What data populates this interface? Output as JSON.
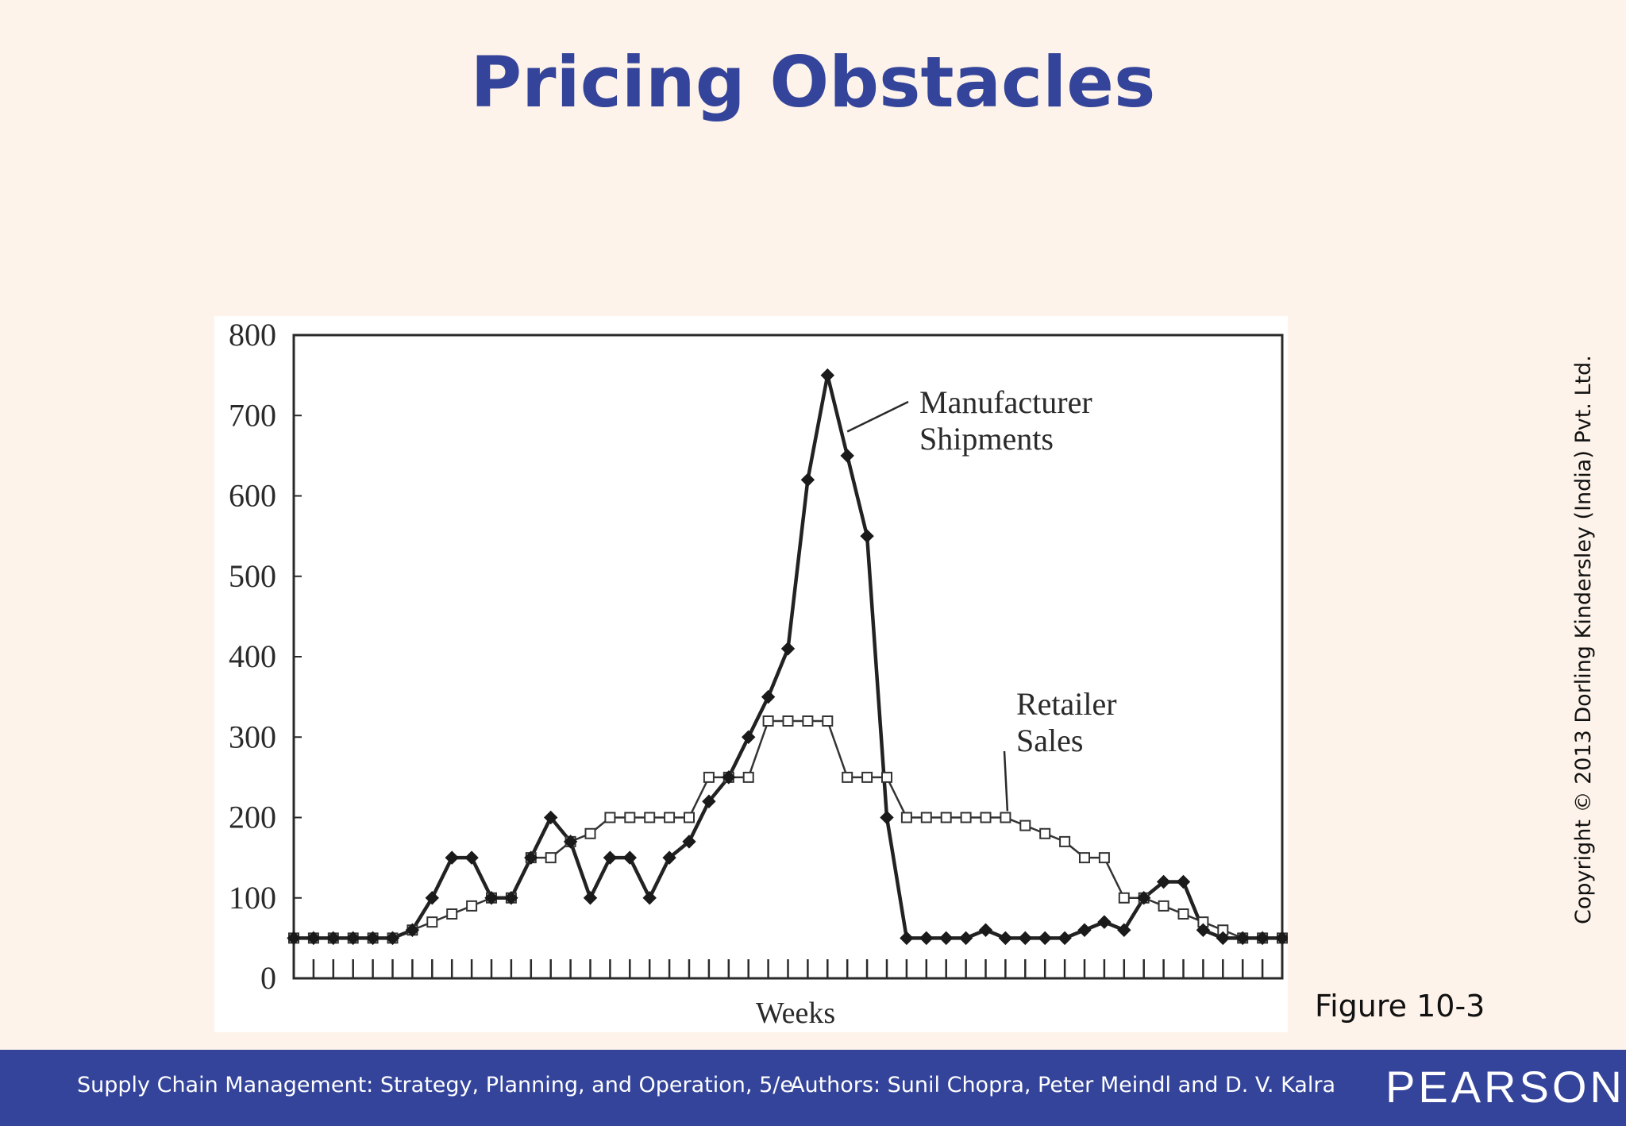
{
  "slide": {
    "title": "Pricing Obstacles",
    "figure_label": "Figure 10-3",
    "copyright": "Copyright © 2013 Dorling Kindersley (India) Pvt. Ltd."
  },
  "footer": {
    "book": "Supply Chain Management: Strategy, Planning, and Operation, 5/e",
    "authors": "Authors: Sunil Chopra, Peter Meindl and D. V. Kalra",
    "logo": "PEARSON"
  },
  "colors": {
    "title": "#34449a",
    "footer_bg": "#34449a",
    "background": "#fdf3ea",
    "line": "#222222"
  },
  "chart_data": {
    "type": "line",
    "title": "",
    "xlabel": "Weeks",
    "ylabel": "",
    "ylim": [
      0,
      800
    ],
    "yticks": [
      0,
      100,
      200,
      300,
      400,
      500,
      600,
      700,
      800
    ],
    "x_tick_count": 50,
    "x": [
      1,
      2,
      3,
      4,
      5,
      6,
      7,
      8,
      9,
      10,
      11,
      12,
      13,
      14,
      15,
      16,
      17,
      18,
      19,
      20,
      21,
      22,
      23,
      24,
      25,
      26,
      27,
      28,
      29,
      30,
      31,
      32,
      33,
      34,
      35,
      36,
      37,
      38,
      39,
      40,
      41,
      42,
      43,
      44,
      45,
      46,
      47,
      48,
      49,
      50,
      51
    ],
    "grid": false,
    "legend": "inline-annotations",
    "series": [
      {
        "name": "Manufacturer Shipments",
        "marker": "filled-diamond",
        "label_lines": [
          "Manufacturer",
          "Shipments"
        ],
        "values": [
          50,
          50,
          50,
          50,
          50,
          50,
          60,
          100,
          150,
          150,
          100,
          100,
          150,
          200,
          170,
          100,
          150,
          150,
          100,
          150,
          170,
          220,
          250,
          300,
          350,
          410,
          620,
          750,
          650,
          550,
          200,
          50,
          50,
          50,
          50,
          60,
          50,
          50,
          50,
          50,
          60,
          70,
          60,
          100,
          120,
          120,
          60,
          50,
          50,
          50,
          50
        ]
      },
      {
        "name": "Retailer Sales",
        "marker": "open-square",
        "label_lines": [
          "Retailer",
          "Sales"
        ],
        "values": [
          50,
          50,
          50,
          50,
          50,
          50,
          60,
          70,
          80,
          90,
          100,
          100,
          150,
          150,
          170,
          180,
          200,
          200,
          200,
          200,
          200,
          250,
          250,
          250,
          320,
          320,
          320,
          320,
          250,
          250,
          250,
          200,
          200,
          200,
          200,
          200,
          200,
          190,
          180,
          170,
          150,
          150,
          100,
          100,
          90,
          80,
          70,
          60,
          50,
          50,
          50
        ]
      }
    ]
  }
}
